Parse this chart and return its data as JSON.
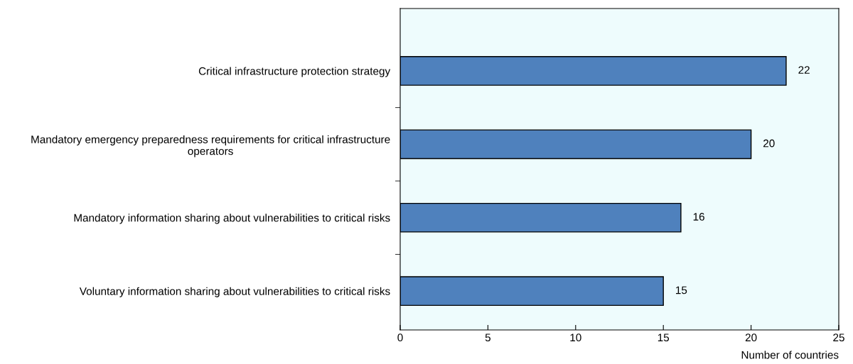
{
  "chart_data": {
    "type": "bar",
    "orientation": "horizontal",
    "categories": [
      "Critical infrastructure protection strategy",
      "Mandatory emergency preparedness requirements for critical infrastructure\noperators",
      "Mandatory information sharing about vulnerabilities to critical risks",
      "Voluntary information sharing about vulnerabilities to critical risks"
    ],
    "values": [
      22,
      20,
      16,
      15
    ],
    "color": "#4f81bd",
    "xlim": [
      0,
      25
    ],
    "xticks": [
      0,
      5,
      10,
      15,
      20,
      25
    ],
    "xlabel": "Number of countries",
    "data_labels": true,
    "grid": false,
    "legend": false
  }
}
